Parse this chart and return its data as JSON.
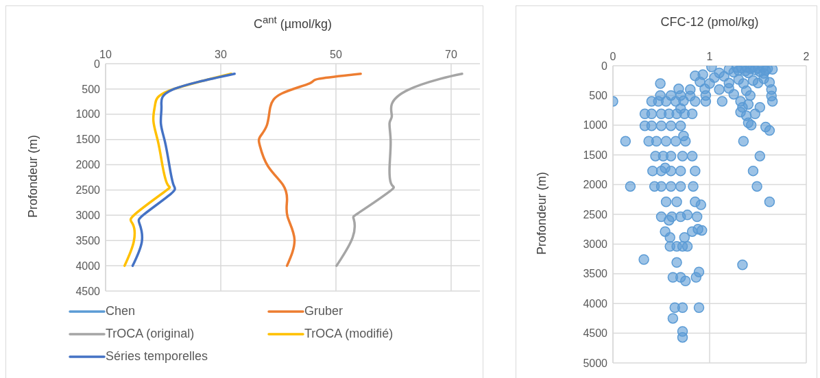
{
  "chart_data": [
    {
      "type": "line",
      "xlabel": "C$^{ant}$ (µmol/kg)",
      "ylabel": "Profondeur (m)",
      "xlim": [
        10,
        75
      ],
      "xticks": [
        10,
        30,
        50,
        70
      ],
      "ylim": [
        4500,
        0
      ],
      "yticks": [
        0,
        500,
        1000,
        1500,
        2000,
        2500,
        3000,
        3500,
        4000,
        4500
      ],
      "grid": true,
      "legend": "bottom",
      "series": [
        {
          "name": "Chen",
          "color": "#5b9bd5"
        },
        {
          "name": "Gruber",
          "color": "#ed7d31",
          "x": [
            54.3,
            47.0,
            45.4,
            40.6,
            38.6,
            38.0,
            36.8,
            36.8,
            38.2,
            40.8,
            41.5,
            41.6,
            42.8,
            41.5
          ],
          "values": [
            200,
            300,
            390,
            590,
            860,
            1220,
            1450,
            1630,
            2030,
            2400,
            2710,
            3030,
            3480,
            4000
          ]
        },
        {
          "name": "TrOCA (original)",
          "color": "#a5a5a5",
          "x": [
            71.9,
            68.1,
            62.5,
            59.7,
            59.7,
            59.3,
            59.5,
            59.3,
            59.7,
            59.3,
            54.1,
            53.1,
            52.9,
            50.1
          ],
          "values": [
            200,
            300,
            520,
            800,
            1040,
            1180,
            1540,
            2080,
            2400,
            2530,
            2940,
            3080,
            3440,
            4000
          ]
        },
        {
          "name": "TrOCA (modifié)",
          "color": "#ffc000",
          "x": [
            31.8,
            20.9,
            18.6,
            18.3,
            19.1,
            19.9,
            20.8,
            20.3,
            15.1,
            14.7,
            14.9,
            13.3
          ],
          "values": [
            200,
            540,
            810,
            1130,
            1540,
            2030,
            2400,
            2530,
            2980,
            3170,
            3520,
            4000
          ]
        },
        {
          "name": "Séries temporelles",
          "color": "#4472c4",
          "x": [
            32.4,
            21.5,
            19.7,
            19.6,
            20.3,
            21.1,
            21.8,
            21.3,
            16.7,
            15.9,
            16.3,
            14.7
          ],
          "values": [
            200,
            520,
            840,
            1180,
            1540,
            2030,
            2400,
            2580,
            2980,
            3170,
            3520,
            4000
          ]
        }
      ]
    },
    {
      "type": "scatter",
      "xlabel": "CFC-12 (pmol/kg)",
      "ylabel": "Profondeur (m)",
      "xlim": [
        0,
        2
      ],
      "xticks": [
        0,
        1,
        2
      ],
      "ylim": [
        5000,
        0
      ],
      "yticks": [
        0,
        500,
        1000,
        1500,
        2000,
        2500,
        3000,
        3500,
        4000,
        4500,
        5000
      ],
      "grid": true,
      "marker": "circle",
      "series": [
        {
          "color": "#5b9bd5",
          "x": [
            1.02,
            1.28,
            1.33,
            1.38,
            1.42,
            1.45,
            1.5,
            1.55,
            1.6,
            1.65,
            1.3,
            1.37,
            1.47,
            1.52,
            1.58,
            1.2,
            1.1,
            1.25,
            1.4,
            1.56,
            0.85,
            0.93,
            1.05,
            1.15,
            1.3,
            1.45,
            1.56,
            0.49,
            0.9,
            1.0,
            1.2,
            1.35,
            1.5,
            1.62,
            0.68,
            0.8,
            0.95,
            1.1,
            1.2,
            1.38,
            1.64,
            0.49,
            0.6,
            0.7,
            0.8,
            0.96,
            1.25,
            1.42,
            1.64,
            0.0,
            0.4,
            0.47,
            0.55,
            0.65,
            0.73,
            0.85,
            0.96,
            1.13,
            1.32,
            1.4,
            1.65,
            0.7,
            1.34,
            1.52,
            0.33,
            0.4,
            0.5,
            0.58,
            0.66,
            0.74,
            0.82,
            1.32,
            1.47,
            1.38,
            0.33,
            0.4,
            0.5,
            0.6,
            0.7,
            1.43,
            1.58,
            1.62,
            1.4,
            0.13,
            0.37,
            0.45,
            0.55,
            0.65,
            0.75,
            1.35,
            0.73,
            0.44,
            0.52,
            0.6,
            0.72,
            0.82,
            1.52,
            0.41,
            0.5,
            0.6,
            0.7,
            0.85,
            1.45,
            0.54,
            0.18,
            0.43,
            0.5,
            0.6,
            0.7,
            0.83,
            1.49,
            0.55,
            0.66,
            0.85,
            0.91,
            1.62,
            0.5,
            0.61,
            0.7,
            0.77,
            0.87,
            0.58,
            0.54,
            0.59,
            0.74,
            0.82,
            0.88,
            0.92,
            0.59,
            0.66,
            0.72,
            0.77,
            0.32,
            0.66,
            1.34,
            0.89,
            0.62,
            0.7,
            0.86,
            0.75,
            0.64,
            0.72,
            0.89,
            0.62,
            0.72,
            0.72
          ],
          "values": [
            20,
            30,
            40,
            30,
            50,
            30,
            40,
            30,
            50,
            60,
            80,
            90,
            70,
            100,
            80,
            60,
            120,
            110,
            120,
            130,
            170,
            150,
            200,
            180,
            230,
            250,
            220,
            300,
            270,
            300,
            290,
            300,
            290,
            280,
            390,
            400,
            390,
            400,
            380,
            420,
            400,
            500,
            500,
            500,
            510,
            500,
            480,
            500,
            510,
            600,
            600,
            600,
            600,
            600,
            590,
            600,
            600,
            600,
            600,
            650,
            600,
            720,
            700,
            700,
            810,
            810,
            810,
            810,
            810,
            810,
            810,
            780,
            810,
            840,
            1010,
            1010,
            1010,
            1010,
            1010,
            1000,
            1030,
            1090,
            960,
            1270,
            1270,
            1270,
            1270,
            1270,
            1270,
            1270,
            1180,
            1520,
            1520,
            1520,
            1520,
            1520,
            1520,
            1770,
            1770,
            1770,
            1770,
            1770,
            1770,
            1720,
            2030,
            2030,
            2030,
            2030,
            2030,
            2030,
            2030,
            2290,
            2290,
            2290,
            2340,
            2290,
            2540,
            2540,
            2540,
            2510,
            2540,
            2600,
            2790,
            2890,
            2890,
            2790,
            2750,
            2770,
            3040,
            3040,
            3040,
            3040,
            3260,
            3310,
            3350,
            3470,
            3560,
            3560,
            3560,
            3620,
            4070,
            4070,
            4070,
            4250,
            4470,
            4570
          ]
        }
      ]
    }
  ]
}
